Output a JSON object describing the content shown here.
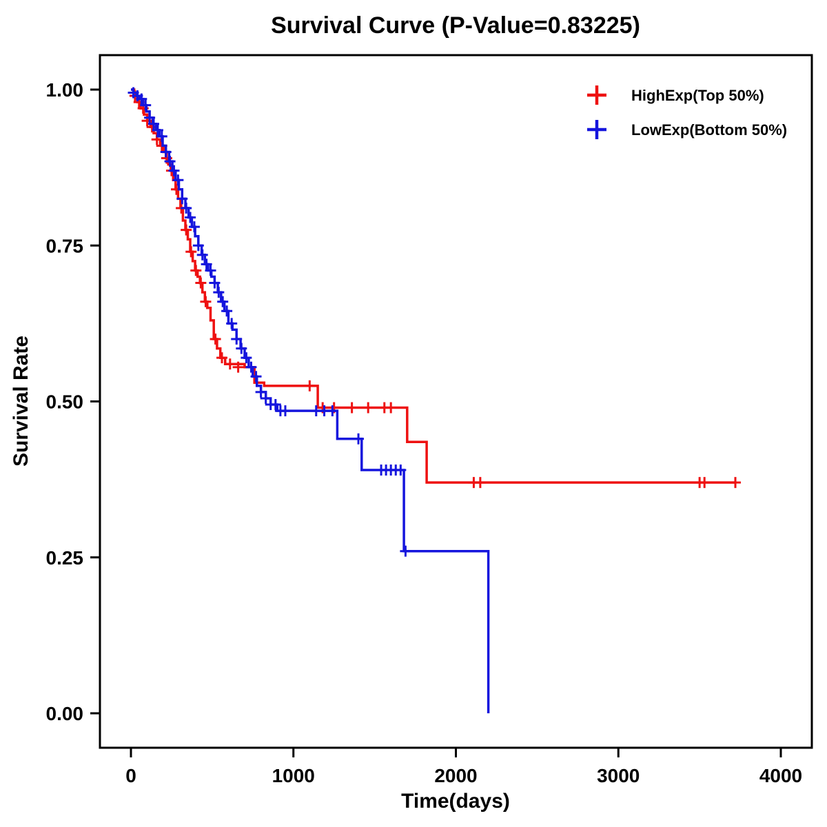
{
  "chart_data": {
    "type": "line",
    "subtype": "kaplan-meier-step",
    "title": "Survival Curve (P-Value=0.83225)",
    "xlabel": "Time(days)",
    "ylabel": "Survival Rate",
    "xlim": [
      0,
      4000
    ],
    "ylim": [
      0.0,
      1.0
    ],
    "grid": false,
    "legend_position": "top-right",
    "x_ticks": [
      {
        "value": 0,
        "label": "0"
      },
      {
        "value": 1000,
        "label": "1000"
      },
      {
        "value": 2000,
        "label": "2000"
      },
      {
        "value": 3000,
        "label": "3000"
      },
      {
        "value": 4000,
        "label": "4000"
      }
    ],
    "y_ticks": [
      {
        "value": 0.0,
        "label": "0.00"
      },
      {
        "value": 0.25,
        "label": "0.25"
      },
      {
        "value": 0.5,
        "label": "0.50"
      },
      {
        "value": 0.75,
        "label": "0.75"
      },
      {
        "value": 1.0,
        "label": "1.00"
      }
    ],
    "series": [
      {
        "name": "HighExp(Top 50%)",
        "color": "#ee1111",
        "steps": [
          [
            0,
            1.0
          ],
          [
            20,
            0.99
          ],
          [
            40,
            0.98
          ],
          [
            60,
            0.97
          ],
          [
            80,
            0.96
          ],
          [
            100,
            0.95
          ],
          [
            120,
            0.94
          ],
          [
            140,
            0.93
          ],
          [
            160,
            0.92
          ],
          [
            180,
            0.91
          ],
          [
            200,
            0.9
          ],
          [
            215,
            0.89
          ],
          [
            230,
            0.88
          ],
          [
            245,
            0.87
          ],
          [
            260,
            0.855
          ],
          [
            275,
            0.84
          ],
          [
            290,
            0.825
          ],
          [
            305,
            0.81
          ],
          [
            320,
            0.79
          ],
          [
            335,
            0.775
          ],
          [
            350,
            0.76
          ],
          [
            365,
            0.74
          ],
          [
            380,
            0.725
          ],
          [
            395,
            0.71
          ],
          [
            410,
            0.7
          ],
          [
            425,
            0.69
          ],
          [
            440,
            0.675
          ],
          [
            455,
            0.66
          ],
          [
            470,
            0.65
          ],
          [
            490,
            0.63
          ],
          [
            510,
            0.6
          ],
          [
            530,
            0.585
          ],
          [
            550,
            0.57
          ],
          [
            580,
            0.56
          ],
          [
            700,
            0.555
          ],
          [
            760,
            0.53
          ],
          [
            820,
            0.525
          ],
          [
            1150,
            0.49
          ],
          [
            1700,
            0.435
          ],
          [
            1820,
            0.37
          ],
          [
            3720,
            0.37
          ]
        ],
        "censor_marks": [
          [
            25,
            0.99
          ],
          [
            50,
            0.98
          ],
          [
            75,
            0.97
          ],
          [
            100,
            0.95
          ],
          [
            130,
            0.94
          ],
          [
            160,
            0.92
          ],
          [
            190,
            0.91
          ],
          [
            220,
            0.89
          ],
          [
            250,
            0.87
          ],
          [
            280,
            0.84
          ],
          [
            310,
            0.81
          ],
          [
            340,
            0.775
          ],
          [
            370,
            0.74
          ],
          [
            400,
            0.71
          ],
          [
            430,
            0.69
          ],
          [
            460,
            0.66
          ],
          [
            520,
            0.6
          ],
          [
            560,
            0.57
          ],
          [
            610,
            0.56
          ],
          [
            660,
            0.555
          ],
          [
            1100,
            0.525
          ],
          [
            1180,
            0.49
          ],
          [
            1250,
            0.49
          ],
          [
            1360,
            0.49
          ],
          [
            1460,
            0.49
          ],
          [
            1560,
            0.49
          ],
          [
            1600,
            0.49
          ],
          [
            2110,
            0.37
          ],
          [
            2150,
            0.37
          ],
          [
            3500,
            0.37
          ],
          [
            3530,
            0.37
          ],
          [
            3720,
            0.37
          ]
        ]
      },
      {
        "name": "LowExp(Bottom 50%)",
        "color": "#1515dd",
        "steps": [
          [
            0,
            1.0
          ],
          [
            15,
            0.995
          ],
          [
            35,
            0.99
          ],
          [
            55,
            0.985
          ],
          [
            75,
            0.975
          ],
          [
            95,
            0.965
          ],
          [
            115,
            0.955
          ],
          [
            135,
            0.945
          ],
          [
            155,
            0.935
          ],
          [
            175,
            0.925
          ],
          [
            195,
            0.91
          ],
          [
            215,
            0.9
          ],
          [
            235,
            0.885
          ],
          [
            255,
            0.87
          ],
          [
            275,
            0.855
          ],
          [
            295,
            0.84
          ],
          [
            315,
            0.825
          ],
          [
            335,
            0.81
          ],
          [
            355,
            0.795
          ],
          [
            375,
            0.78
          ],
          [
            395,
            0.765
          ],
          [
            415,
            0.75
          ],
          [
            435,
            0.735
          ],
          [
            455,
            0.72
          ],
          [
            475,
            0.71
          ],
          [
            495,
            0.7
          ],
          [
            515,
            0.69
          ],
          [
            535,
            0.675
          ],
          [
            555,
            0.66
          ],
          [
            575,
            0.645
          ],
          [
            600,
            0.625
          ],
          [
            625,
            0.615
          ],
          [
            650,
            0.6
          ],
          [
            675,
            0.585
          ],
          [
            700,
            0.57
          ],
          [
            725,
            0.555
          ],
          [
            750,
            0.54
          ],
          [
            775,
            0.525
          ],
          [
            800,
            0.515
          ],
          [
            830,
            0.505
          ],
          [
            860,
            0.495
          ],
          [
            900,
            0.485
          ],
          [
            1270,
            0.44
          ],
          [
            1420,
            0.39
          ],
          [
            1680,
            0.26
          ],
          [
            2200,
            0.0
          ]
        ],
        "censor_marks": [
          [
            15,
            0.995
          ],
          [
            40,
            0.99
          ],
          [
            65,
            0.985
          ],
          [
            90,
            0.975
          ],
          [
            115,
            0.955
          ],
          [
            140,
            0.945
          ],
          [
            165,
            0.935
          ],
          [
            190,
            0.925
          ],
          [
            215,
            0.9
          ],
          [
            240,
            0.885
          ],
          [
            265,
            0.87
          ],
          [
            290,
            0.855
          ],
          [
            315,
            0.825
          ],
          [
            340,
            0.81
          ],
          [
            365,
            0.795
          ],
          [
            390,
            0.78
          ],
          [
            415,
            0.75
          ],
          [
            440,
            0.735
          ],
          [
            465,
            0.72
          ],
          [
            490,
            0.71
          ],
          [
            515,
            0.69
          ],
          [
            540,
            0.675
          ],
          [
            565,
            0.66
          ],
          [
            590,
            0.645
          ],
          [
            620,
            0.625
          ],
          [
            650,
            0.6
          ],
          [
            680,
            0.585
          ],
          [
            710,
            0.57
          ],
          [
            740,
            0.555
          ],
          [
            770,
            0.54
          ],
          [
            800,
            0.515
          ],
          [
            830,
            0.505
          ],
          [
            860,
            0.495
          ],
          [
            890,
            0.495
          ],
          [
            920,
            0.485
          ],
          [
            950,
            0.485
          ],
          [
            1140,
            0.485
          ],
          [
            1190,
            0.485
          ],
          [
            1240,
            0.485
          ],
          [
            1400,
            0.44
          ],
          [
            1540,
            0.39
          ],
          [
            1570,
            0.39
          ],
          [
            1600,
            0.39
          ],
          [
            1630,
            0.39
          ],
          [
            1660,
            0.39
          ],
          [
            1690,
            0.26
          ]
        ]
      }
    ]
  }
}
